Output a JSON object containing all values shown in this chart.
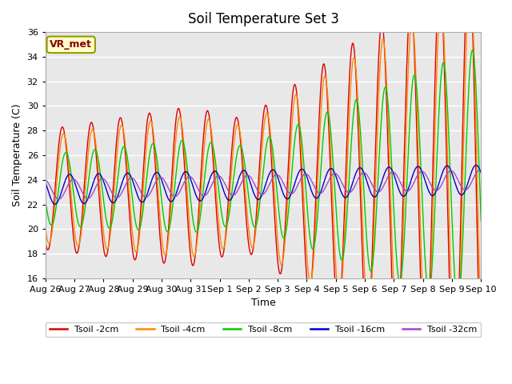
{
  "title": "Soil Temperature Set 3",
  "xlabel": "Time",
  "ylabel": "Soil Temperature (C)",
  "ylim": [
    16,
    36
  ],
  "yticks": [
    16,
    18,
    20,
    22,
    24,
    26,
    28,
    30,
    32,
    34,
    36
  ],
  "x_labels": [
    "Aug 26",
    "Aug 27",
    "Aug 28",
    "Aug 29",
    "Aug 30",
    "Aug 31",
    "Sep 1",
    "Sep 2",
    "Sep 3",
    "Sep 4",
    "Sep 5",
    "Sep 6",
    "Sep 7",
    "Sep 8",
    "Sep 9",
    "Sep 10"
  ],
  "annotation_text": "VR_met",
  "annotation_bg": "#ffffcc",
  "annotation_border": "#999900",
  "annotation_text_color": "#880000",
  "bg_color": "#e8e8e8",
  "series": [
    {
      "label": "Tsoil -2cm",
      "color": "#dd0000"
    },
    {
      "label": "Tsoil -4cm",
      "color": "#ff8800"
    },
    {
      "label": "Tsoil -8cm",
      "color": "#00cc00"
    },
    {
      "label": "Tsoil -16cm",
      "color": "#0000cc"
    },
    {
      "label": "Tsoil -32cm",
      "color": "#aa44cc"
    }
  ]
}
